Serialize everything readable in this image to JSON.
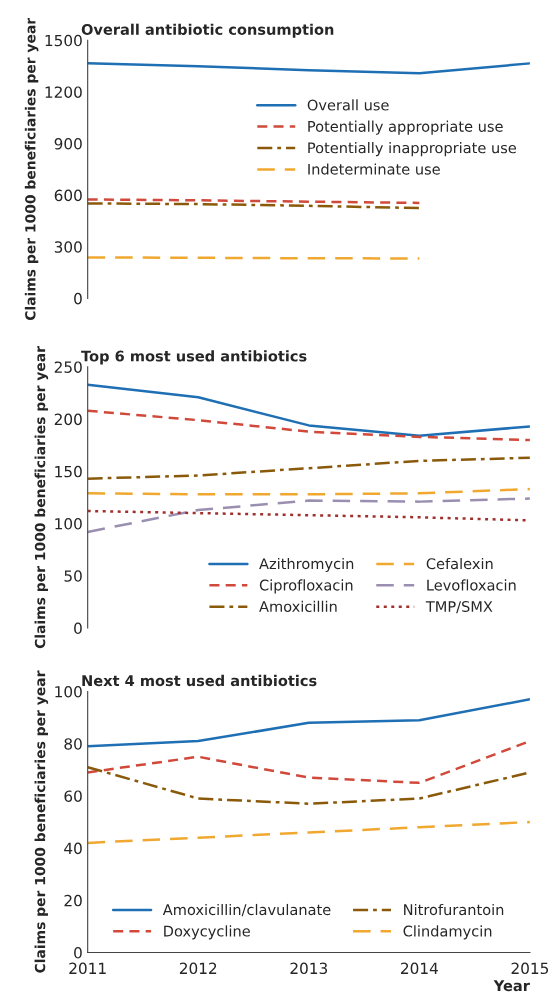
{
  "chart_data": [
    {
      "type": "line",
      "title": "Overall antibiotic consumption",
      "ylabel": "Claims per 1000 beneficiaries per year",
      "x": [
        2011,
        2012,
        2013,
        2014,
        2015
      ],
      "xlim": [
        2011,
        2015
      ],
      "ylim": [
        0,
        1500
      ],
      "yticks": [
        0,
        300,
        600,
        900,
        1200,
        1500
      ],
      "tick_labels": "y",
      "legend": "right",
      "series": [
        {
          "name": "Overall use",
          "color": "#1f6fb4",
          "line_style": "solid",
          "values": [
            1366,
            1349,
            1326,
            1308,
            1366
          ]
        },
        {
          "name": "Potentially appropriate use",
          "color": "#d0493a",
          "line_style": "dashed",
          "values": [
            575,
            570,
            562,
            555,
            null
          ]
        },
        {
          "name": "Potentially inappropriate use",
          "color": "#8a5a0a",
          "line_style": "dashdot",
          "values": [
            552,
            548,
            538,
            525,
            null
          ]
        },
        {
          "name": "Indeterminate use",
          "color": "#f0a830",
          "line_style": "longdash",
          "values": [
            238,
            236,
            233,
            232,
            null
          ]
        }
      ]
    },
    {
      "type": "line",
      "title": "Top 6 most used antibiotics",
      "ylabel": "Claims per 1000 beneficiaries per year",
      "x": [
        2011,
        2012,
        2013,
        2014,
        2015
      ],
      "xlim": [
        2011,
        2015
      ],
      "ylim": [
        0,
        250
      ],
      "yticks": [
        0,
        50,
        100,
        150,
        200,
        250
      ],
      "tick_labels": "y",
      "legend": "bottom right",
      "series": [
        {
          "name": "Azithromycin",
          "color": "#1f6fb4",
          "line_style": "solid",
          "values": [
            233,
            221,
            194,
            184,
            193
          ]
        },
        {
          "name": "Ciprofloxacin",
          "color": "#d0493a",
          "line_style": "dashed",
          "values": [
            208,
            199,
            188,
            183,
            180
          ]
        },
        {
          "name": "Amoxicillin",
          "color": "#8a5a0a",
          "line_style": "dashdot",
          "values": [
            143,
            146,
            153,
            160,
            163
          ]
        },
        {
          "name": "Cefalexin",
          "color": "#f0a830",
          "line_style": "longdash",
          "values": [
            129,
            128,
            128,
            129,
            133
          ]
        },
        {
          "name": "Levofloxacin",
          "color": "#9a8fb0",
          "line_style": "longdash",
          "values": [
            92,
            113,
            122,
            121,
            124
          ]
        },
        {
          "name": "TMP/SMX",
          "color": "#a0302c",
          "line_style": "dotted",
          "values": [
            112,
            110,
            108,
            106,
            103
          ]
        }
      ]
    },
    {
      "type": "line",
      "title": "Next 4 most used antibiotics",
      "ylabel": "Claims per 1000 beneficiaries per year",
      "xlabel": "Year",
      "x": [
        2011,
        2012,
        2013,
        2014,
        2015
      ],
      "xlim": [
        2011,
        2015
      ],
      "xticks": [
        2011,
        2012,
        2013,
        2014,
        2015
      ],
      "ylim": [
        0,
        100
      ],
      "yticks": [
        0,
        20,
        40,
        60,
        80,
        100
      ],
      "legend": "bottom",
      "series": [
        {
          "name": "Amoxicillin/clavulanate",
          "color": "#1f6fb4",
          "line_style": "solid",
          "values": [
            79,
            81,
            88,
            89,
            97
          ]
        },
        {
          "name": "Doxycycline",
          "color": "#d0493a",
          "line_style": "dashed",
          "values": [
            69,
            75,
            67,
            65,
            81
          ]
        },
        {
          "name": "Nitrofurantoin",
          "color": "#8a5a0a",
          "line_style": "dashdot",
          "values": [
            71,
            59,
            57,
            59,
            69
          ]
        },
        {
          "name": "Clindamycin",
          "color": "#f0a830",
          "line_style": "longdash",
          "values": [
            42,
            44,
            46,
            48,
            50
          ]
        }
      ]
    }
  ]
}
